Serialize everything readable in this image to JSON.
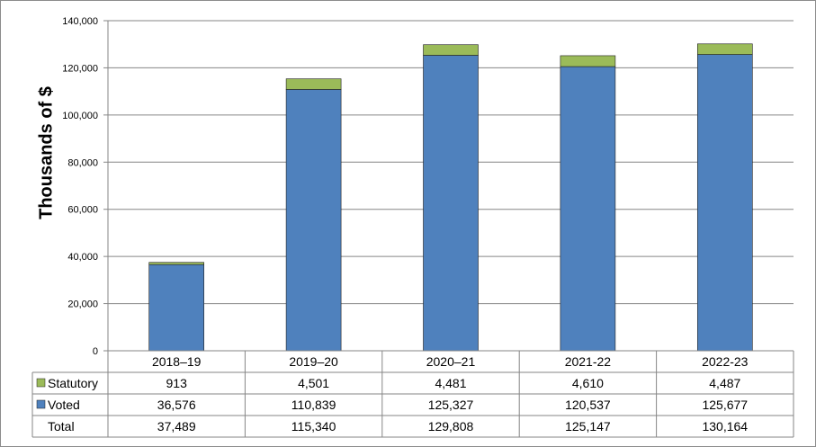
{
  "chart_data": {
    "type": "bar",
    "stacked": true,
    "ylabel": "Thousands of $",
    "ylim": [
      0,
      140000
    ],
    "yticks": [
      0,
      20000,
      40000,
      60000,
      80000,
      100000,
      120000,
      140000
    ],
    "ytick_labels": [
      "0",
      "20,000",
      "40,000",
      "60,000",
      "80,000",
      "100,000",
      "120,000",
      "140,000"
    ],
    "grid": true,
    "categories": [
      "2018–19",
      "2019–20",
      "2020–21",
      "2021-22",
      "2022-23"
    ],
    "series": [
      {
        "name": "Voted",
        "color": "#4f81bd",
        "values": [
          36576,
          110839,
          125327,
          120537,
          125677
        ],
        "labels": [
          "36,576",
          "110,839",
          "125,327",
          "120,537",
          "125,677"
        ]
      },
      {
        "name": "Statutory",
        "color": "#9bbb59",
        "values": [
          913,
          4501,
          4481,
          4610,
          4487
        ],
        "labels": [
          "913",
          "4,501",
          "4,481",
          "4,610",
          "4,487"
        ]
      }
    ],
    "total": {
      "name": "Total",
      "values": [
        37489,
        115340,
        129808,
        125147,
        130164
      ],
      "labels": [
        "37,489",
        "115,340",
        "129,808",
        "125,147",
        "130,164"
      ]
    }
  }
}
